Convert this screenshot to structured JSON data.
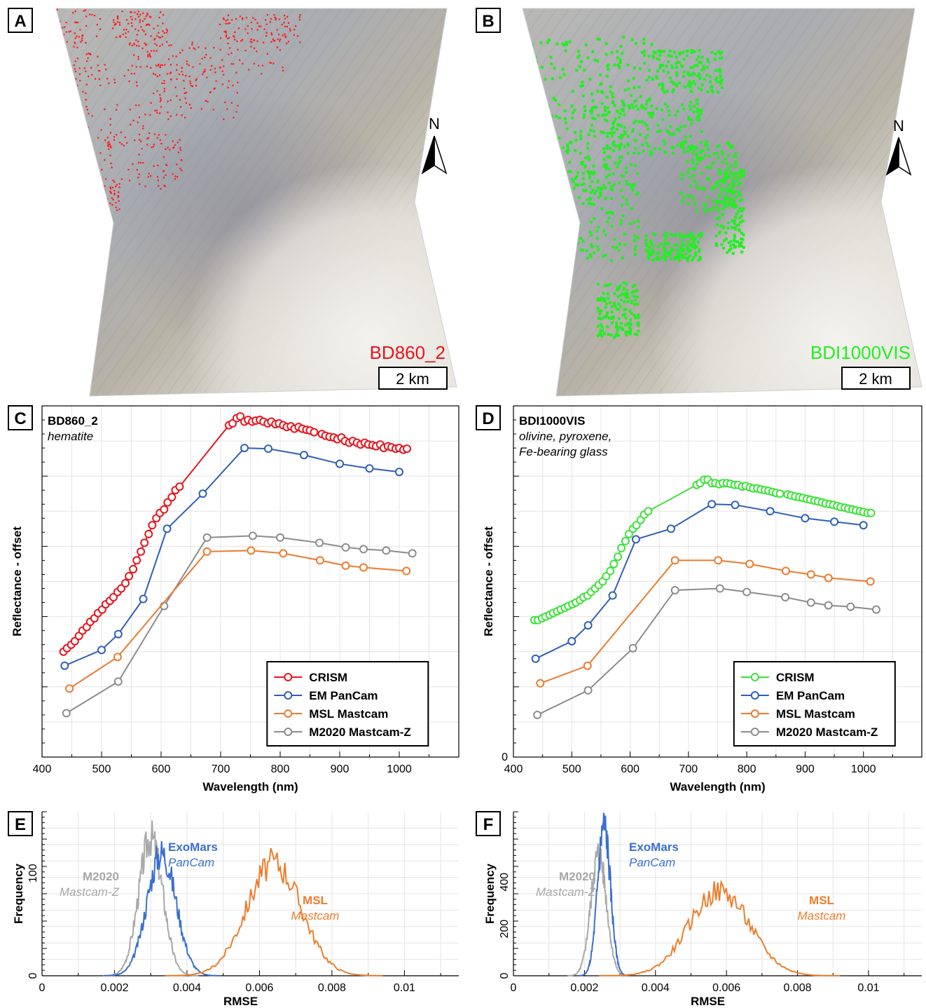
{
  "panels": {
    "A": {
      "letter": "A",
      "map_label": "BD860_2",
      "scale": "2 km",
      "north": "N",
      "overlay_color": "#ff1a1a"
    },
    "B": {
      "letter": "B",
      "map_label": "BDI1000VIS",
      "scale": "2 km",
      "north": "N",
      "overlay_color": "#22ee22"
    },
    "C": {
      "letter": "C",
      "title": "BD860_2",
      "subtitle_lines": [
        "hematite"
      ]
    },
    "D": {
      "letter": "D",
      "title": "BDI1000VIS",
      "subtitle_lines": [
        "olivine, pyroxene,",
        "Fe-bearing glass"
      ]
    },
    "E": {
      "letter": "E"
    },
    "F": {
      "letter": "F"
    }
  },
  "colors": {
    "crism_c": "#e8141c",
    "crism_d": "#3ee13a",
    "pancam": "#2e5fb8",
    "mastcam": "#ec7a2e",
    "mastcamz": "#8c8c8c",
    "hist_pancam": "#3a6fd0",
    "hist_mastcam": "#ee7d2c",
    "hist_mastcamz": "#a8a8a8"
  },
  "chart_data": [
    {
      "id": "C",
      "type": "line",
      "xlabel": "Wavelength (nm)",
      "ylabel": "Reflectance - offset",
      "xlim": [
        400,
        1100
      ],
      "xticks": [
        400,
        500,
        600,
        700,
        800,
        900,
        1000
      ],
      "yticks": [],
      "legend": [
        "CRISM",
        "EM PanCam",
        "MSL Mastcam",
        "M2020 Mastcam-Z"
      ],
      "legend_position": "bottom-right",
      "series": [
        {
          "name": "CRISM",
          "x": [
            436,
            442,
            449,
            455,
            462,
            468,
            475,
            481,
            488,
            494,
            501,
            507,
            514,
            520,
            527,
            533,
            540,
            546,
            553,
            559,
            566,
            572,
            579,
            585,
            592,
            598,
            605,
            611,
            618,
            624,
            631,
            714,
            720,
            727,
            733,
            740,
            746,
            753,
            759,
            766,
            772,
            779,
            785,
            792,
            798,
            805,
            811,
            818,
            824,
            831,
            837,
            844,
            850,
            857,
            870,
            876,
            883,
            890,
            896,
            903,
            909,
            916,
            922,
            929,
            935,
            942,
            948,
            955,
            961,
            968,
            974,
            981,
            987,
            994,
            1000,
            1007,
            1013
          ],
          "y": [
            0.3,
            0.31,
            0.32,
            0.33,
            0.345,
            0.36,
            0.37,
            0.385,
            0.395,
            0.41,
            0.42,
            0.435,
            0.445,
            0.455,
            0.47,
            0.48,
            0.495,
            0.515,
            0.535,
            0.56,
            0.585,
            0.61,
            0.635,
            0.66,
            0.68,
            0.695,
            0.705,
            0.725,
            0.74,
            0.76,
            0.77,
            0.945,
            0.95,
            0.965,
            0.97,
            0.955,
            0.96,
            0.955,
            0.958,
            0.96,
            0.955,
            0.95,
            0.955,
            0.948,
            0.95,
            0.945,
            0.94,
            0.942,
            0.935,
            0.94,
            0.935,
            0.932,
            0.93,
            0.925,
            0.92,
            0.915,
            0.912,
            0.91,
            0.905,
            0.91,
            0.9,
            0.895,
            0.9,
            0.895,
            0.89,
            0.895,
            0.89,
            0.888,
            0.885,
            0.89,
            0.88,
            0.885,
            0.882,
            0.878,
            0.88,
            0.875,
            0.878
          ]
        },
        {
          "name": "EM PanCam",
          "x": [
            438,
            500,
            528,
            570,
            610,
            670,
            740,
            780,
            840,
            900,
            950,
            1000
          ],
          "y": [
            0.26,
            0.305,
            0.35,
            0.45,
            0.65,
            0.75,
            0.88,
            0.878,
            0.86,
            0.835,
            0.822,
            0.812
          ]
        },
        {
          "name": "MSL Mastcam",
          "x": [
            446,
            527,
            677,
            751,
            805,
            867,
            910,
            940,
            1012
          ],
          "y": [
            0.195,
            0.285,
            0.585,
            0.588,
            0.58,
            0.56,
            0.545,
            0.54,
            0.53
          ]
        },
        {
          "name": "M2020 Mastcam-Z",
          "x": [
            441,
            528,
            605,
            677,
            754,
            800,
            866,
            910,
            940,
            978,
            1022
          ],
          "y": [
            0.125,
            0.215,
            0.43,
            0.625,
            0.63,
            0.625,
            0.61,
            0.597,
            0.592,
            0.588,
            0.58
          ]
        }
      ]
    },
    {
      "id": "D",
      "type": "line",
      "xlabel": "Wavelength (nm)",
      "ylabel": "Reflectance - offset",
      "xlim": [
        400,
        1100
      ],
      "xticks": [
        400,
        500,
        600,
        700,
        800,
        900,
        1000
      ],
      "yticks": [
        0
      ],
      "legend": [
        "CRISM",
        "EM PanCam",
        "MSL Mastcam",
        "M2020 Mastcam-Z"
      ],
      "legend_position": "bottom-right",
      "series": [
        {
          "name": "CRISM",
          "x": [
            436,
            442,
            449,
            455,
            462,
            468,
            475,
            481,
            488,
            494,
            501,
            507,
            514,
            520,
            527,
            533,
            540,
            546,
            553,
            559,
            566,
            572,
            579,
            585,
            592,
            598,
            605,
            611,
            618,
            624,
            631,
            714,
            720,
            727,
            733,
            740,
            746,
            753,
            759,
            766,
            772,
            779,
            785,
            792,
            798,
            805,
            811,
            818,
            824,
            831,
            837,
            844,
            850,
            857,
            870,
            876,
            883,
            890,
            896,
            903,
            909,
            916,
            922,
            929,
            935,
            942,
            948,
            955,
            961,
            968,
            974,
            981,
            987,
            994,
            1000,
            1007,
            1013
          ],
          "y": [
            0.39,
            0.39,
            0.395,
            0.4,
            0.405,
            0.41,
            0.415,
            0.42,
            0.425,
            0.43,
            0.435,
            0.44,
            0.447,
            0.455,
            0.46,
            0.47,
            0.48,
            0.49,
            0.5,
            0.515,
            0.53,
            0.55,
            0.57,
            0.595,
            0.615,
            0.635,
            0.65,
            0.66,
            0.675,
            0.69,
            0.7,
            0.775,
            0.78,
            0.79,
            0.79,
            0.78,
            0.78,
            0.777,
            0.78,
            0.78,
            0.778,
            0.775,
            0.775,
            0.77,
            0.772,
            0.768,
            0.765,
            0.765,
            0.762,
            0.76,
            0.758,
            0.755,
            0.752,
            0.75,
            0.748,
            0.745,
            0.742,
            0.74,
            0.738,
            0.735,
            0.733,
            0.73,
            0.728,
            0.725,
            0.722,
            0.72,
            0.718,
            0.715,
            0.712,
            0.71,
            0.707,
            0.705,
            0.702,
            0.7,
            0.698,
            0.695,
            0.695
          ]
        },
        {
          "name": "EM PanCam",
          "x": [
            438,
            500,
            528,
            570,
            610,
            670,
            740,
            780,
            840,
            900,
            950,
            1000
          ],
          "y": [
            0.28,
            0.33,
            0.375,
            0.46,
            0.62,
            0.65,
            0.72,
            0.718,
            0.7,
            0.68,
            0.67,
            0.66
          ]
        },
        {
          "name": "MSL Mastcam",
          "x": [
            446,
            527,
            677,
            751,
            805,
            867,
            910,
            940,
            1012
          ],
          "y": [
            0.21,
            0.26,
            0.56,
            0.56,
            0.55,
            0.53,
            0.52,
            0.51,
            0.5
          ]
        },
        {
          "name": "M2020 Mastcam-Z",
          "x": [
            441,
            528,
            605,
            677,
            754,
            800,
            866,
            910,
            940,
            978,
            1022
          ],
          "y": [
            0.12,
            0.19,
            0.31,
            0.475,
            0.48,
            0.47,
            0.455,
            0.44,
            0.432,
            0.428,
            0.42
          ]
        }
      ]
    },
    {
      "id": "E",
      "type": "area",
      "xlabel": "RMSE",
      "ylabel": "Frequency",
      "xlim": [
        0,
        0.0115
      ],
      "ylim": [
        0,
        160
      ],
      "xticks": [
        "0",
        "0.002",
        "0.004",
        "0.006",
        "0.008",
        "0.01"
      ],
      "yticks": [
        0,
        100
      ],
      "series": [
        {
          "name": "M2020 Mastcam-Z",
          "label_lines": [
            "M2020",
            "Mastcam-Z"
          ],
          "mean": 0.003,
          "sd": 0.00033,
          "peak": 135
        },
        {
          "name": "ExoMars PanCam",
          "label_lines": [
            "ExoMars",
            "PanCam"
          ],
          "mean": 0.0033,
          "sd": 0.0004,
          "peak": 120
        },
        {
          "name": "MSL Mastcam",
          "label_lines": [
            "MSL",
            "Mastcam"
          ],
          "mean": 0.0064,
          "sd": 0.00075,
          "peak": 110
        }
      ]
    },
    {
      "id": "F",
      "type": "area",
      "xlabel": "RMSE",
      "ylabel": "Frequency",
      "xlim": [
        0,
        0.0115
      ],
      "ylim": [
        0,
        700
      ],
      "xticks": [
        "0",
        "0.002",
        "0.004",
        "0.006",
        "0.008",
        "0.01"
      ],
      "yticks": [
        0,
        200,
        400
      ],
      "series": [
        {
          "name": "M2020 Mastcam-Z",
          "label_lines": [
            "M2020",
            "Mastcam-Z"
          ],
          "mean": 0.0024,
          "sd": 0.00022,
          "peak": 520
        },
        {
          "name": "ExoMars PanCam",
          "label_lines": [
            "ExoMars",
            "PanCam"
          ],
          "mean": 0.00255,
          "sd": 0.00018,
          "peak": 640
        },
        {
          "name": "MSL Mastcam",
          "label_lines": [
            "MSL",
            "Mastcam"
          ],
          "mean": 0.0058,
          "sd": 0.00085,
          "peak": 360
        }
      ]
    }
  ]
}
